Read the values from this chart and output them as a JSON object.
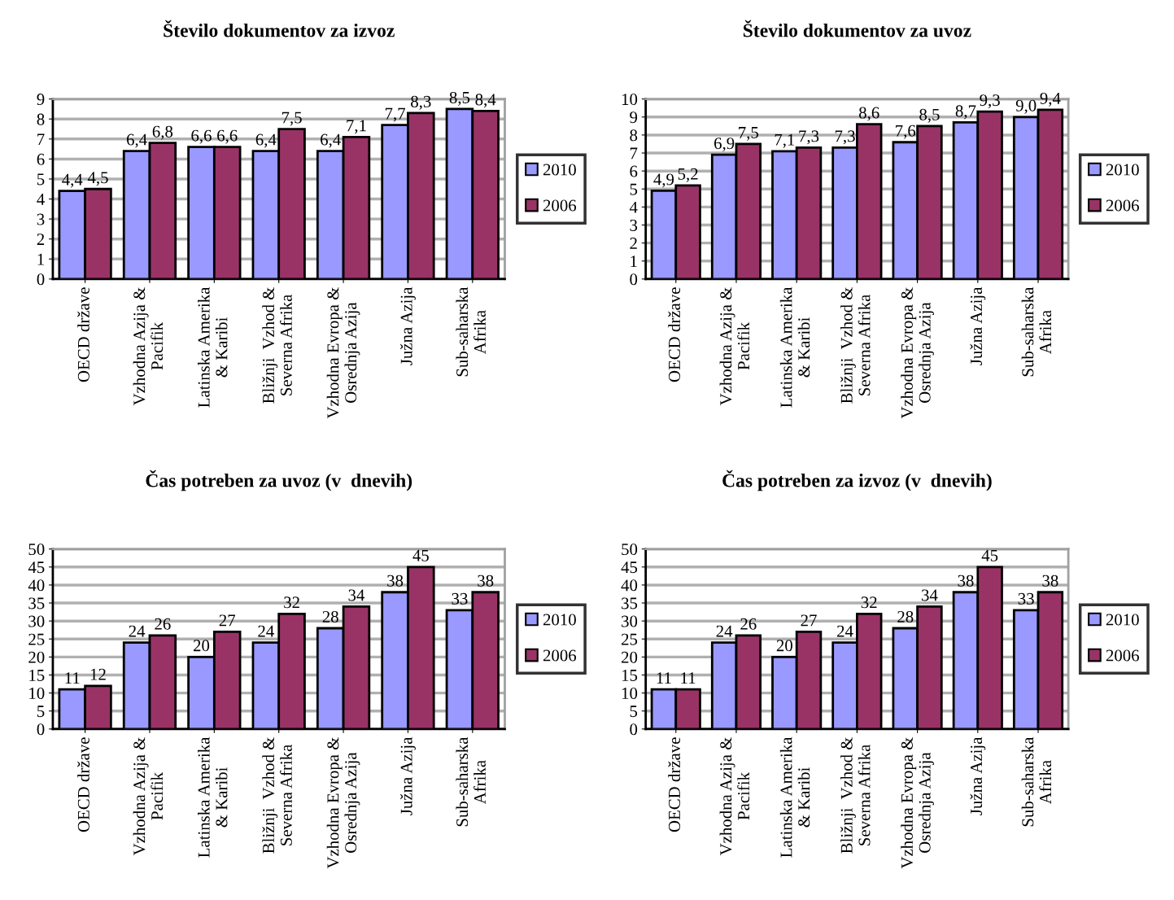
{
  "chart_data": [
    {
      "type": "bar",
      "title": "Število dokumentov za izvoz",
      "categories": [
        "OECD države",
        "Vzhodna Azija &\nPacifik",
        "Latinska Amerika\n& Karibi",
        "Bližnji  Vzhod &\nSeverna Afrika",
        "Vzhodna Evropa &\nOsrednja Azija",
        "Južna Azija",
        "Sub-saharska\nAfrika"
      ],
      "series": [
        {
          "name": "2010",
          "color": "#9999ff",
          "values": [
            4.4,
            6.4,
            6.6,
            6.4,
            6.4,
            7.7,
            8.5
          ],
          "value_labels": [
            "4,4",
            "6,4",
            "6,6",
            "6,4",
            "6,4",
            "7,7",
            "8,5"
          ]
        },
        {
          "name": "2006",
          "color": "#993366",
          "values": [
            4.5,
            6.8,
            6.6,
            7.5,
            7.1,
            8.3,
            8.4
          ],
          "value_labels": [
            "4,5",
            "6,8",
            "6,6",
            "7,5",
            "7,1",
            "8,3",
            "8,4"
          ]
        }
      ],
      "ylim": [
        0,
        9
      ],
      "yticks": [
        0,
        1,
        2,
        3,
        4,
        5,
        6,
        7,
        8,
        9
      ],
      "grid": "y",
      "legend": "right"
    },
    {
      "type": "bar",
      "title": "Število dokumentov za uvoz",
      "categories": [
        "OECD države",
        "Vzhodna Azija &\nPacifik",
        "Latinska Amerika\n& Karibi",
        "Bližnji  Vzhod &\nSeverna Afrika",
        "Vzhodna Evropa &\nOsrednja Azija",
        "Južna Azija",
        "Sub-saharska\nAfrika"
      ],
      "series": [
        {
          "name": "2010",
          "color": "#9999ff",
          "values": [
            4.9,
            6.9,
            7.1,
            7.3,
            7.6,
            8.7,
            9.0
          ],
          "value_labels": [
            "4,9",
            "6,9",
            "7,1",
            "7,3",
            "7,6",
            "8,7",
            "9,0"
          ]
        },
        {
          "name": "2006",
          "color": "#993366",
          "values": [
            5.2,
            7.5,
            7.3,
            8.6,
            8.5,
            9.3,
            9.4
          ],
          "value_labels": [
            "5,2",
            "7,5",
            "7,3",
            "8,6",
            "8,5",
            "9,3",
            "9,4"
          ]
        }
      ],
      "ylim": [
        0,
        10
      ],
      "yticks": [
        0,
        1,
        2,
        3,
        4,
        5,
        6,
        7,
        8,
        9,
        10
      ],
      "grid": "y",
      "legend": "right"
    },
    {
      "type": "bar",
      "title": "Čas potreben za uvoz (v  dnevih)",
      "categories": [
        "OECD države",
        "Vzhodna Azija &\nPacifik",
        "Latinska Amerika\n& Karibi",
        "Bližnji  Vzhod &\nSeverna Afrika",
        "Vzhodna Evropa &\nOsrednja Azija",
        "Južna Azija",
        "Sub-saharska\nAfrika"
      ],
      "series": [
        {
          "name": "2010",
          "color": "#9999ff",
          "values": [
            11,
            24,
            20,
            24,
            28,
            38,
            33
          ],
          "value_labels": [
            "11",
            "24",
            "20",
            "24",
            "28",
            "38",
            "33"
          ]
        },
        {
          "name": "2006",
          "color": "#993366",
          "values": [
            12,
            26,
            27,
            32,
            34,
            45,
            38
          ],
          "value_labels": [
            "12",
            "26",
            "27",
            "32",
            "34",
            "45",
            "38"
          ]
        }
      ],
      "ylim": [
        0,
        50
      ],
      "yticks": [
        0,
        5,
        10,
        15,
        20,
        25,
        30,
        35,
        40,
        45,
        50
      ],
      "grid": "y",
      "legend": "right"
    },
    {
      "type": "bar",
      "title": "Čas potreben za izvoz (v  dnevih)",
      "categories": [
        "OECD države",
        "Vzhodna Azija &\nPacifik",
        "Latinska Amerika\n& Karibi",
        "Bližnji  Vzhod &\nSeverna Afrika",
        "Vzhodna Evropa &\nOsrednja Azija",
        "Južna Azija",
        "Sub-saharska\nAfrika"
      ],
      "series": [
        {
          "name": "2010",
          "color": "#9999ff",
          "values": [
            11,
            24,
            20,
            24,
            28,
            38,
            33
          ],
          "value_labels": [
            "11",
            "24",
            "20",
            "24",
            "28",
            "38",
            "33"
          ]
        },
        {
          "name": "2006",
          "color": "#993366",
          "values": [
            11,
            26,
            27,
            32,
            34,
            45,
            38
          ],
          "value_labels": [
            "11",
            "26",
            "27",
            "32",
            "34",
            "45",
            "38"
          ]
        }
      ],
      "ylim": [
        0,
        50
      ],
      "yticks": [
        0,
        5,
        10,
        15,
        20,
        25,
        30,
        35,
        40,
        45,
        50
      ],
      "grid": "y",
      "legend": "right"
    }
  ]
}
